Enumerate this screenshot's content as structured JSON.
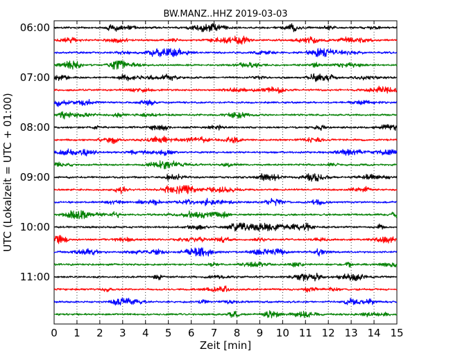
{
  "chart_data": {
    "type": "line",
    "title": "BW.MANZ..HHZ 2019-03-03",
    "xlabel": "Zeit  [min]",
    "ylabel": "UTC (Lokalzeit = UTC + 01:00)",
    "xlim": [
      0,
      15
    ],
    "x_ticks": [
      0,
      1,
      2,
      3,
      4,
      5,
      6,
      7,
      8,
      9,
      10,
      11,
      12,
      13,
      14,
      15
    ],
    "y_ticks": [
      {
        "label": "06:00",
        "trace_index": 0
      },
      {
        "label": "07:00",
        "trace_index": 4
      },
      {
        "label": "08:00",
        "trace_index": 8
      },
      {
        "label": "09:00",
        "trace_index": 12
      },
      {
        "label": "10:00",
        "trace_index": 16
      },
      {
        "label": "11:00",
        "trace_index": 20
      }
    ],
    "trace_minutes": 15,
    "trace_colors": [
      "#000000",
      "#ff0000",
      "#0000ff",
      "#008000"
    ],
    "traces": [
      {
        "start": "06:00"
      },
      {
        "start": "06:15"
      },
      {
        "start": "06:30"
      },
      {
        "start": "06:45"
      },
      {
        "start": "07:00"
      },
      {
        "start": "07:15"
      },
      {
        "start": "07:30"
      },
      {
        "start": "07:45"
      },
      {
        "start": "08:00"
      },
      {
        "start": "08:15"
      },
      {
        "start": "08:30"
      },
      {
        "start": "08:45"
      },
      {
        "start": "09:00"
      },
      {
        "start": "09:15"
      },
      {
        "start": "09:30"
      },
      {
        "start": "09:45"
      },
      {
        "start": "10:00"
      },
      {
        "start": "10:15"
      },
      {
        "start": "10:30"
      },
      {
        "start": "10:45"
      },
      {
        "start": "11:00"
      },
      {
        "start": "11:15"
      },
      {
        "start": "11:30"
      },
      {
        "start": "11:45"
      }
    ],
    "grid": "vertical-dotted",
    "legend": "none"
  }
}
